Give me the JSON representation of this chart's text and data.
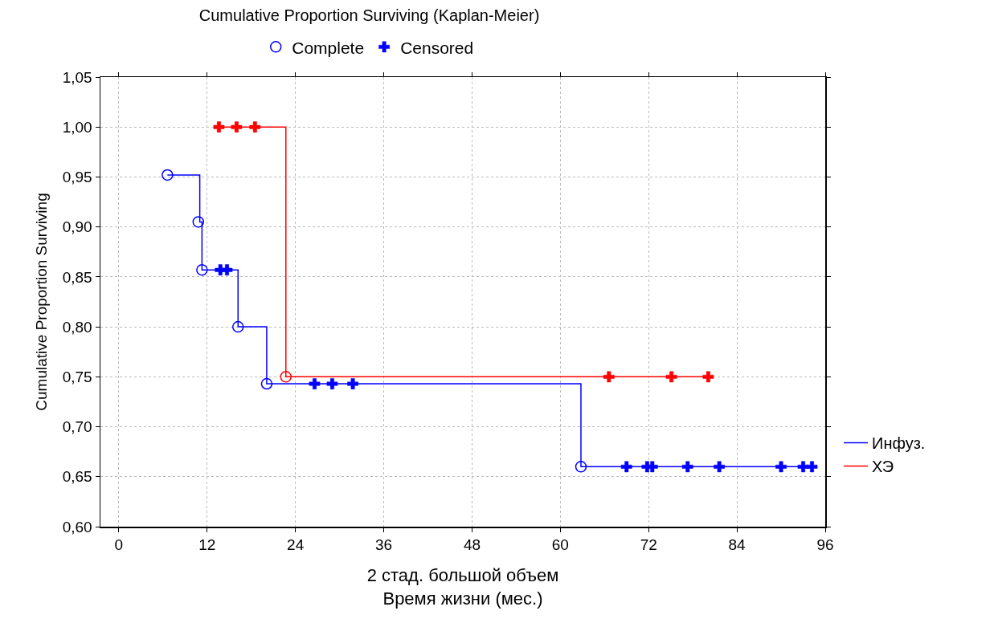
{
  "chart_data": {
    "type": "step",
    "title": "Cumulative Proportion Surviving (Kaplan-Meier)",
    "xlabel": "2 стад. большой объем\nВремя жизни (мес.)",
    "ylabel": "Cumulative Proportion Surviving",
    "xlim": [
      -2.5,
      96
    ],
    "xticks": [
      0,
      12,
      24,
      36,
      48,
      60,
      72,
      84,
      96
    ],
    "ylim": [
      0.6,
      1.05
    ],
    "yticks": [
      {
        "value": 0.6,
        "label": "0,60"
      },
      {
        "value": 0.65,
        "label": "0,65"
      },
      {
        "value": 0.7,
        "label": "0,70"
      },
      {
        "value": 0.75,
        "label": "0,75"
      },
      {
        "value": 0.8,
        "label": "0,80"
      },
      {
        "value": 0.85,
        "label": "0,85"
      },
      {
        "value": 0.9,
        "label": "0,90"
      },
      {
        "value": 0.95,
        "label": "0,95"
      },
      {
        "value": 1.0,
        "label": "1,00"
      },
      {
        "value": 1.05,
        "label": "1,05"
      }
    ],
    "grid": true,
    "legend": "right",
    "series": [
      {
        "name": "Инфуз.",
        "color": "#0000ff",
        "marker": "none",
        "x": [
          6.6,
          11.0,
          11.3,
          16.2,
          20.1,
          62.8,
          94.2
        ],
        "values": [
          0.952,
          0.905,
          0.857,
          0.8,
          0.743,
          0.66,
          0.66
        ]
      },
      {
        "name": "ХЭ",
        "color": "#ff0000",
        "marker": "none",
        "x": [
          13.6,
          22.7,
          80.1
        ],
        "values": [
          1.0,
          0.75,
          0.75
        ]
      },
      {
        "name": "Complete",
        "type": "scatter",
        "color": "#0000ff",
        "marker": "circle",
        "x": [
          6.6,
          10.8,
          11.3,
          16.2,
          20.1,
          62.8
        ],
        "values": [
          0.952,
          0.905,
          0.857,
          0.8,
          0.743,
          0.66
        ]
      },
      {
        "name": "Censored",
        "type": "scatter",
        "color": "#0000ff",
        "marker": "cross",
        "x": [
          13.8,
          14.7,
          26.6,
          29.0,
          31.8,
          69.0,
          71.8,
          72.5,
          77.3,
          81.6,
          90.0,
          93.0,
          94.2
        ],
        "values": [
          0.857,
          0.857,
          0.743,
          0.743,
          0.743,
          0.66,
          0.66,
          0.66,
          0.66,
          0.66,
          0.66,
          0.66,
          0.66
        ]
      },
      {
        "type": "scatter",
        "color": "#ff0000",
        "marker": "circle",
        "x": [
          22.7
        ],
        "values": [
          0.75
        ]
      },
      {
        "type": "scatter",
        "color": "#ff0000",
        "marker": "cross",
        "x": [
          13.6,
          16.0,
          18.5,
          66.6,
          75.1,
          80.1
        ],
        "values": [
          1.0,
          1.0,
          1.0,
          0.75,
          0.75,
          0.75
        ]
      }
    ]
  }
}
